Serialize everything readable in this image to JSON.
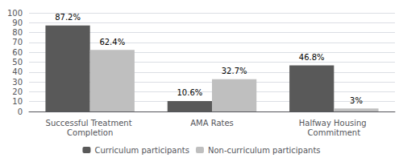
{
  "chart_data": {
    "type": "bar",
    "categories": [
      "Successful Treatment Completion",
      "AMA Rates",
      "Halfway Housing Commitment"
    ],
    "series": [
      {
        "name": "Curriculum participants",
        "color": "#595959",
        "values": [
          87.2,
          10.6,
          46.8
        ],
        "value_labels": [
          "87.2%",
          "10.6%",
          "46.8%"
        ]
      },
      {
        "name": "Non-curriculum participants",
        "color": "#bfbfbf",
        "values": [
          62.4,
          32.7,
          3.0
        ],
        "value_labels": [
          "62.4%",
          "32.7%",
          "3%"
        ]
      }
    ],
    "ylim": [
      0,
      100
    ],
    "yticks": [
      0,
      10,
      20,
      30,
      40,
      50,
      60,
      70,
      80,
      90,
      100
    ],
    "grid": true,
    "legend": "bottom",
    "data_labels": true
  }
}
